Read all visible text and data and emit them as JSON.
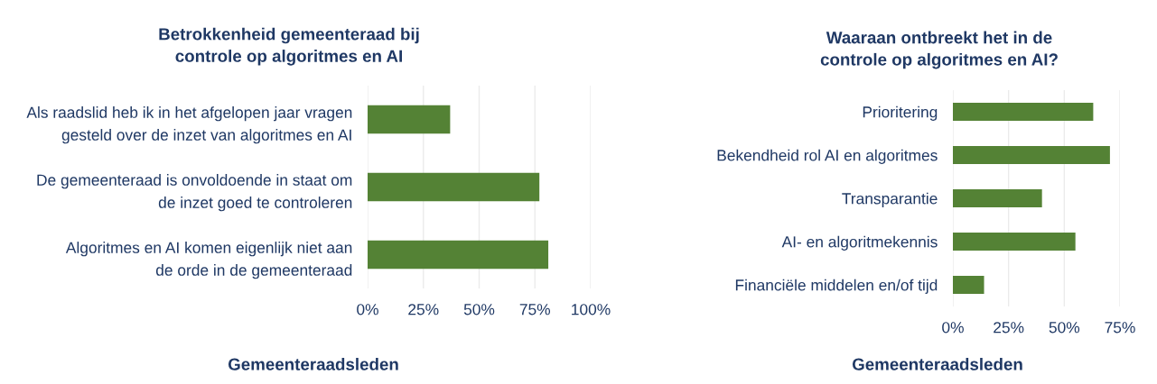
{
  "chart_data": [
    {
      "type": "bar",
      "orientation": "horizontal",
      "title": "Betrokkenheid gemeenteraad bij\ncontrole op algoritmes en AI",
      "xlabel": "Gemeenteraadsleden",
      "categories": [
        "Als raadslid heb ik in het afgelopen jaar vragen\ngesteld over de inzet van algoritmes en AI",
        "De gemeenteraad is onvoldoende in staat om\nde inzet goed te controleren",
        "Algoritmes en AI komen eigenlijk niet aan\nde orde in de gemeenteraad"
      ],
      "values": [
        37,
        77,
        81
      ],
      "color": "#548235",
      "xlim": [
        0,
        100
      ],
      "xticks": [
        {
          "value": 0,
          "label": "0%"
        },
        {
          "value": 25,
          "label": "25%"
        },
        {
          "value": 50,
          "label": "50%"
        },
        {
          "value": 75,
          "label": "75%"
        },
        {
          "value": 100,
          "label": "100%"
        }
      ],
      "grid": "x"
    },
    {
      "type": "bar",
      "orientation": "horizontal",
      "title": "Waaraan ontbreekt het in de\ncontrole op algoritmes en AI?",
      "xlabel": "Gemeenteraadsleden",
      "categories": [
        "Prioritering",
        "Bekendheid rol AI en algoritmes",
        "Transparantie",
        "AI- en algoritmekennis",
        "Financiële middelen en/of tijd"
      ],
      "values": [
        63,
        70.5,
        40,
        55,
        14
      ],
      "color": "#548235",
      "xlim": [
        0,
        75
      ],
      "xticks": [
        {
          "value": 0,
          "label": "0%"
        },
        {
          "value": 25,
          "label": "25%"
        },
        {
          "value": 50,
          "label": "50%"
        },
        {
          "value": 75,
          "label": "75%"
        }
      ],
      "grid": "x"
    }
  ]
}
